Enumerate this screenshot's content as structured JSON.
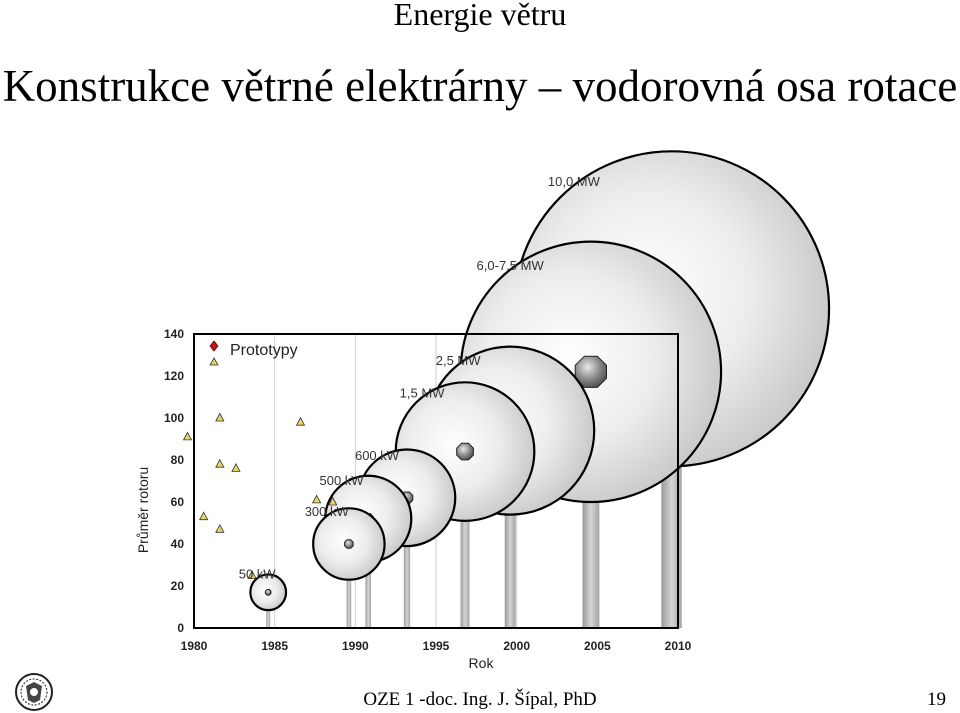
{
  "header": {
    "title": "Energie větru",
    "subtitle": "Konstrukce větrné elektrárny – vodorovná osa rotace"
  },
  "footer": {
    "text": "OZE 1 -doc. Ing. J. Šípal, PhD",
    "page_number": "19"
  },
  "chart_data": {
    "type": "bubble",
    "xlabel": "Rok",
    "ylabel": "Průměr rotoru",
    "xlim": [
      1980,
      2010
    ],
    "ylim": [
      0,
      140
    ],
    "xticks": [
      "1980",
      "1985",
      "1990",
      "1995",
      "2000",
      "2005",
      "2010"
    ],
    "yticks": [
      "0",
      "20",
      "40",
      "60",
      "80",
      "100",
      "120",
      "140"
    ],
    "legend": {
      "label": "Prototypy",
      "position": "top-left"
    },
    "prototypes": [
      {
        "x": 1979.6,
        "y": 91
      },
      {
        "x": 1980.6,
        "y": 53
      },
      {
        "x": 1981.6,
        "y": 100
      },
      {
        "x": 1981.6,
        "y": 78
      },
      {
        "x": 1981.6,
        "y": 47
      },
      {
        "x": 1982.6,
        "y": 76
      },
      {
        "x": 1983.6,
        "y": 25
      },
      {
        "x": 1986.6,
        "y": 98
      },
      {
        "x": 1987.6,
        "y": 61
      },
      {
        "x": 1988.6,
        "y": 60
      }
    ],
    "turbines": [
      {
        "label": "50 kW",
        "x": 1984.6,
        "y": 17,
        "diameter": 17
      },
      {
        "label": "300 kW",
        "x": 1989.6,
        "y": 40,
        "diameter": 34
      },
      {
        "label": "500 kW",
        "x": 1990.8,
        "y": 52,
        "diameter": 41
      },
      {
        "label": "600 kW",
        "x": 1993.2,
        "y": 62,
        "diameter": 46
      },
      {
        "label": "1,5 MW",
        "x": 1996.8,
        "y": 84,
        "diameter": 66
      },
      {
        "label": "2,5 MW",
        "x": 1999.6,
        "y": 94,
        "diameter": 80
      },
      {
        "label": "6,0-7,5 MW",
        "x": 2004.6,
        "y": 122,
        "diameter": 124
      },
      {
        "label": "10,0 MW",
        "x": 2009.6,
        "y": 152,
        "diameter": 150
      }
    ]
  }
}
